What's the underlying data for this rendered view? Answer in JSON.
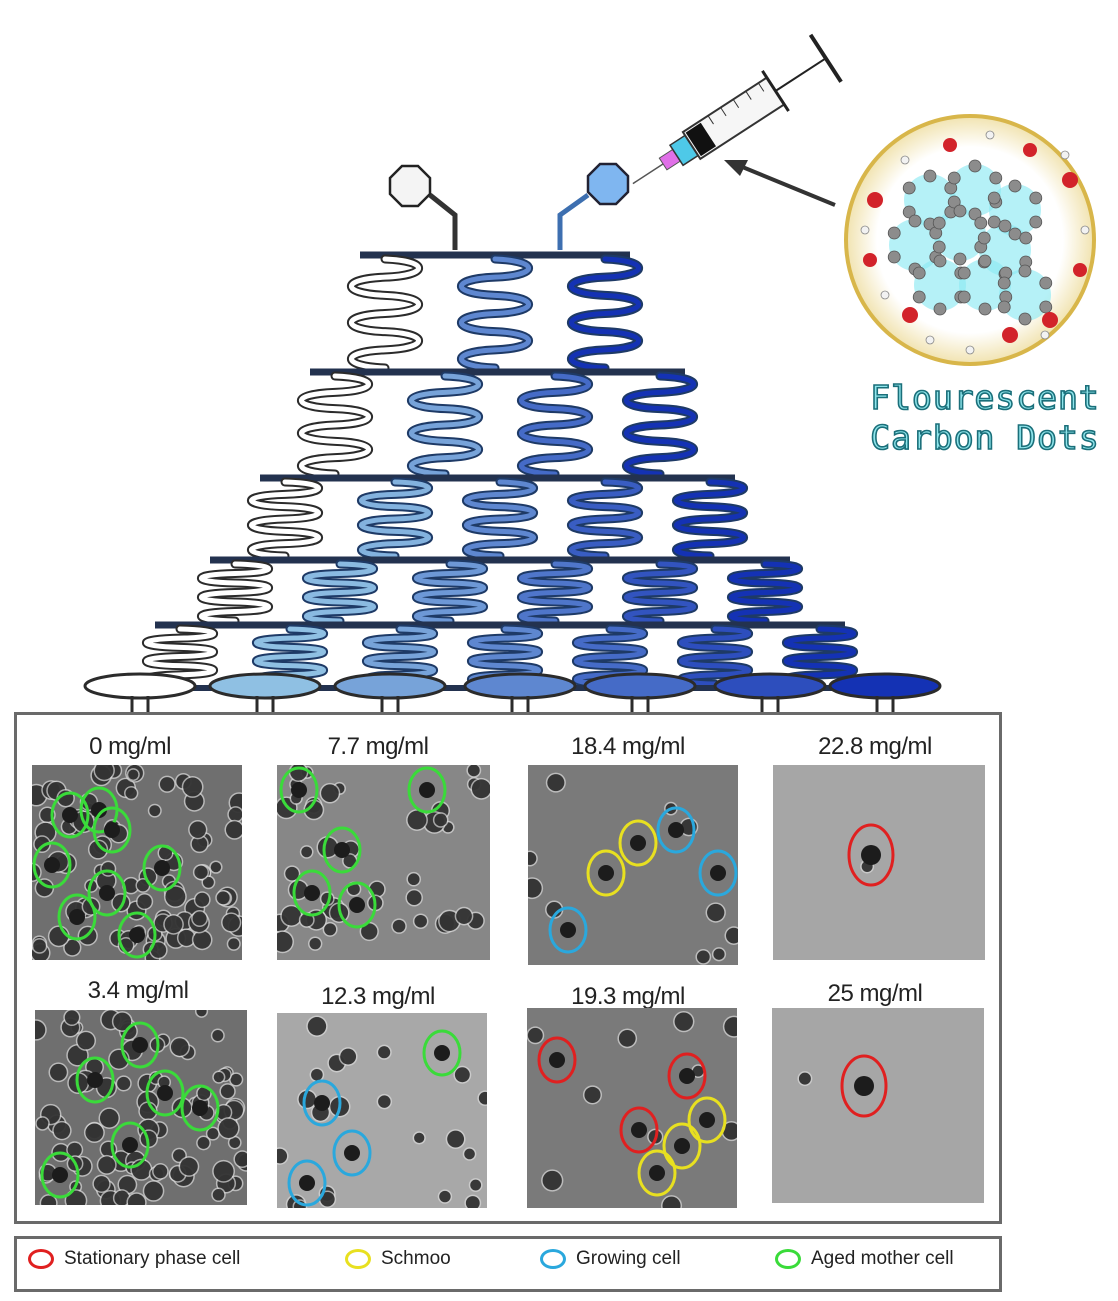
{
  "carbon_dots_label": [
    "Flourescent",
    "Carbon Dots"
  ],
  "panels": [
    {
      "label": "0 mg/ml",
      "tone": "dense",
      "rings": [
        [
          "#3adb3a",
          67,
          45
        ],
        [
          "#3adb3a",
          38,
          50
        ],
        [
          "#3adb3a",
          80,
          65
        ],
        [
          "#3adb3a",
          20,
          100
        ],
        [
          "#3adb3a",
          130,
          103
        ],
        [
          "#3adb3a",
          75,
          128
        ],
        [
          "#3adb3a",
          45,
          152
        ],
        [
          "#3adb3a",
          105,
          170
        ]
      ]
    },
    {
      "label": "7.7 mg/ml",
      "tone": "medium",
      "rings": [
        [
          "#3adb3a",
          22,
          25
        ],
        [
          "#3adb3a",
          150,
          25
        ],
        [
          "#3adb3a",
          65,
          85
        ],
        [
          "#3adb3a",
          35,
          128
        ],
        [
          "#3adb3a",
          80,
          140
        ]
      ]
    },
    {
      "label": "18.4 mg/ml",
      "tone": "sparse",
      "rings": [
        [
          "#2aa8dd",
          148,
          65
        ],
        [
          "#2aa8dd",
          190,
          108
        ],
        [
          "#e8e020",
          110,
          78
        ],
        [
          "#e8e020",
          78,
          108
        ],
        [
          "#2aa8dd",
          40,
          165
        ]
      ]
    },
    {
      "label": "22.8 mg/ml",
      "tone": "empty",
      "rings": [
        [
          "#e02020",
          98,
          90
        ]
      ]
    },
    {
      "label": "3.4 mg/ml",
      "tone": "dense",
      "rings": [
        [
          "#3adb3a",
          105,
          35
        ],
        [
          "#3adb3a",
          60,
          70
        ],
        [
          "#3adb3a",
          130,
          83
        ],
        [
          "#3adb3a",
          165,
          98
        ],
        [
          "#3adb3a",
          95,
          135
        ],
        [
          "#3adb3a",
          25,
          165
        ]
      ]
    },
    {
      "label": "12.3 mg/ml",
      "tone": "light",
      "rings": [
        [
          "#3adb3a",
          165,
          40
        ],
        [
          "#2aa8dd",
          45,
          90
        ],
        [
          "#2aa8dd",
          75,
          140
        ],
        [
          "#2aa8dd",
          30,
          170
        ]
      ]
    },
    {
      "label": "19.3 mg/ml",
      "tone": "sparse",
      "rings": [
        [
          "#e02020",
          30,
          52
        ],
        [
          "#e02020",
          160,
          68
        ],
        [
          "#e02020",
          112,
          122
        ],
        [
          "#e8e020",
          180,
          112
        ],
        [
          "#e8e020",
          155,
          138
        ],
        [
          "#e8e020",
          130,
          165
        ]
      ]
    },
    {
      "label": "25 mg/ml",
      "tone": "empty",
      "rings": [
        [
          "#e02020",
          92,
          78
        ]
      ]
    }
  ],
  "legend": [
    {
      "label": "Stationary phase cell",
      "color": "#e02020"
    },
    {
      "label": "Schmoo",
      "color": "#e8e020"
    },
    {
      "label": "Growing cell",
      "color": "#2aa8dd"
    },
    {
      "label": "Aged mother cell",
      "color": "#3adb3a"
    }
  ]
}
